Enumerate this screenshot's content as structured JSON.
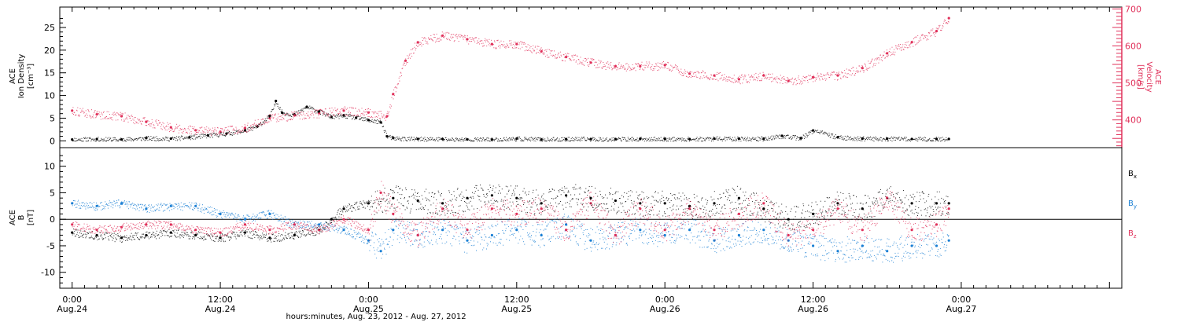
{
  "chart_data": {
    "type": "scatter",
    "xlabel": "hours:minutes, Aug. 23, 2012 - Aug. 27, 2012",
    "x_range_hours": [
      -1,
      85
    ],
    "x_ticks": [
      {
        "h": 0,
        "time": "0:00",
        "date": "Aug.24"
      },
      {
        "h": 12,
        "time": "12:00",
        "date": "Aug.24"
      },
      {
        "h": 24,
        "time": "0:00",
        "date": "Aug.25"
      },
      {
        "h": 36,
        "time": "12:00",
        "date": "Aug.25"
      },
      {
        "h": 48,
        "time": "0:00",
        "date": "Aug.26"
      },
      {
        "h": 60,
        "time": "12:00",
        "date": "Aug.26"
      },
      {
        "h": 72,
        "time": "0:00",
        "date": "Aug.27"
      }
    ],
    "panels": [
      {
        "id": "top",
        "ylabel_lines": [
          "ACE",
          "Ion Density",
          "[cm⁻³]"
        ],
        "ylim": [
          -1.5,
          29.5
        ],
        "yticks": [
          0,
          5,
          10,
          15,
          20,
          25
        ],
        "right_axis": {
          "label_lines": [
            "ACE",
            "Velocity",
            "[km/s]"
          ],
          "ylim": [
            325,
            705
          ],
          "yticks": [
            400,
            500,
            600,
            700
          ],
          "color": "#e0305a"
        },
        "series": [
          {
            "name": "",
            "axis": "left",
            "color": "#000000",
            "points": [
              [
                0,
                0.3
              ],
              [
                2,
                0.4
              ],
              [
                4,
                0.3
              ],
              [
                6,
                0.6
              ],
              [
                8,
                0.5
              ],
              [
                9.5,
                0.8
              ],
              [
                11,
                1.2
              ],
              [
                12.5,
                1.6
              ],
              [
                14,
                2.3
              ],
              [
                15,
                3.2
              ],
              [
                16,
                5.5
              ],
              [
                16.5,
                8.8
              ],
              [
                17,
                6.2
              ],
              [
                18,
                5.8
              ],
              [
                19,
                7.5
              ],
              [
                20,
                6.5
              ],
              [
                21,
                5.3
              ],
              [
                22,
                5.6
              ],
              [
                23,
                5.1
              ],
              [
                24,
                4.6
              ],
              [
                25,
                4.1
              ],
              [
                25.5,
                1.0
              ],
              [
                26,
                0.6
              ],
              [
                28,
                0.4
              ],
              [
                30,
                0.4
              ],
              [
                32,
                0.3
              ],
              [
                34,
                0.3
              ],
              [
                36,
                0.5
              ],
              [
                38,
                0.3
              ],
              [
                40,
                0.4
              ],
              [
                42,
                0.4
              ],
              [
                44,
                0.4
              ],
              [
                46,
                0.4
              ],
              [
                48,
                0.4
              ],
              [
                50,
                0.4
              ],
              [
                52,
                0.5
              ],
              [
                54,
                0.5
              ],
              [
                56,
                0.5
              ],
              [
                57.5,
                1.1
              ],
              [
                59,
                0.6
              ],
              [
                60,
                2.3
              ],
              [
                62,
                0.8
              ],
              [
                64,
                0.5
              ],
              [
                66,
                0.5
              ],
              [
                68,
                0.4
              ],
              [
                70,
                0.4
              ],
              [
                71,
                0.4
              ]
            ]
          },
          {
            "name": "",
            "axis": "right",
            "color": "#e0305a",
            "points": [
              [
                0,
                425
              ],
              [
                2,
                415
              ],
              [
                4,
                410
              ],
              [
                6,
                395
              ],
              [
                8,
                380
              ],
              [
                10,
                372
              ],
              [
                12,
                368
              ],
              [
                14,
                378
              ],
              [
                16,
                405
              ],
              [
                18,
                412
              ],
              [
                20,
                418
              ],
              [
                22,
                425
              ],
              [
                24,
                420
              ],
              [
                25.5,
                410
              ],
              [
                26,
                470
              ],
              [
                27,
                560
              ],
              [
                28,
                610
              ],
              [
                30,
                628
              ],
              [
                32,
                618
              ],
              [
                34,
                605
              ],
              [
                36,
                605
              ],
              [
                38,
                585
              ],
              [
                40,
                570
              ],
              [
                42,
                555
              ],
              [
                44,
                545
              ],
              [
                46,
                545
              ],
              [
                48,
                548
              ],
              [
                50,
                525
              ],
              [
                52,
                520
              ],
              [
                54,
                510
              ],
              [
                56,
                520
              ],
              [
                58,
                505
              ],
              [
                60,
                515
              ],
              [
                62,
                520
              ],
              [
                64,
                540
              ],
              [
                66,
                580
              ],
              [
                68,
                610
              ],
              [
                70,
                640
              ],
              [
                71,
                675
              ]
            ]
          }
        ]
      },
      {
        "id": "bottom",
        "ylabel_lines": [
          "ACE",
          "B",
          "[nT]"
        ],
        "ylim": [
          -13,
          13.5
        ],
        "yticks": [
          -10,
          -5,
          0,
          5,
          10
        ],
        "zero_line": true,
        "legend": [
          {
            "label": "B",
            "sub": "x",
            "color": "#000000"
          },
          {
            "label": "B",
            "sub": "y",
            "color": "#1a7fd4"
          },
          {
            "label": "B",
            "sub": "z",
            "color": "#e0305a"
          }
        ],
        "series": [
          {
            "name": "Bx",
            "color": "#000000",
            "points": [
              [
                0,
                -2.5
              ],
              [
                2,
                -3
              ],
              [
                4,
                -3.5
              ],
              [
                6,
                -3
              ],
              [
                8,
                -2.5
              ],
              [
                10,
                -3
              ],
              [
                12,
                -3.5
              ],
              [
                14,
                -2.5
              ],
              [
                16,
                -3.5
              ],
              [
                18,
                -3
              ],
              [
                20,
                -2
              ],
              [
                21,
                0
              ],
              [
                22,
                2
              ],
              [
                24,
                3
              ],
              [
                26,
                4
              ],
              [
                28,
                3.5
              ],
              [
                30,
                3
              ],
              [
                32,
                4
              ],
              [
                34,
                4.5
              ],
              [
                36,
                4
              ],
              [
                38,
                3
              ],
              [
                40,
                4.5
              ],
              [
                42,
                4
              ],
              [
                44,
                3.5
              ],
              [
                46,
                3
              ],
              [
                48,
                3
              ],
              [
                50,
                2.5
              ],
              [
                52,
                3
              ],
              [
                54,
                4
              ],
              [
                56,
                2
              ],
              [
                58,
                0
              ],
              [
                60,
                1
              ],
              [
                62,
                3
              ],
              [
                64,
                2
              ],
              [
                66,
                4
              ],
              [
                68,
                3
              ],
              [
                70,
                3
              ],
              [
                71,
                3
              ]
            ]
          },
          {
            "name": "By",
            "color": "#1a7fd4",
            "points": [
              [
                0,
                3
              ],
              [
                2,
                2.5
              ],
              [
                4,
                3
              ],
              [
                6,
                2
              ],
              [
                8,
                2.5
              ],
              [
                10,
                2.5
              ],
              [
                12,
                1
              ],
              [
                14,
                0
              ],
              [
                16,
                1
              ],
              [
                18,
                -1
              ],
              [
                20,
                -1
              ],
              [
                22,
                -2
              ],
              [
                24,
                -4
              ],
              [
                25,
                -6
              ],
              [
                26,
                -2
              ],
              [
                28,
                -3
              ],
              [
                30,
                -2
              ],
              [
                32,
                -4
              ],
              [
                34,
                -3
              ],
              [
                36,
                -2
              ],
              [
                38,
                -3
              ],
              [
                40,
                -1
              ],
              [
                42,
                -4
              ],
              [
                44,
                -3
              ],
              [
                46,
                -2
              ],
              [
                48,
                -3
              ],
              [
                50,
                -2
              ],
              [
                52,
                -4
              ],
              [
                54,
                -3
              ],
              [
                56,
                -2
              ],
              [
                58,
                -4
              ],
              [
                60,
                -5
              ],
              [
                62,
                -6
              ],
              [
                64,
                -5
              ],
              [
                66,
                -6
              ],
              [
                68,
                -5
              ],
              [
                70,
                -5
              ],
              [
                71,
                -4
              ]
            ]
          },
          {
            "name": "Bz",
            "color": "#e0305a",
            "points": [
              [
                0,
                -1
              ],
              [
                2,
                -2
              ],
              [
                4,
                -1.5
              ],
              [
                6,
                -1
              ],
              [
                8,
                -1
              ],
              [
                10,
                -2
              ],
              [
                12,
                -2.5
              ],
              [
                14,
                -1
              ],
              [
                16,
                -2
              ],
              [
                18,
                -1
              ],
              [
                20,
                -2
              ],
              [
                22,
                0
              ],
              [
                24,
                -2
              ],
              [
                25,
                5
              ],
              [
                26,
                1
              ],
              [
                28,
                -3
              ],
              [
                30,
                2
              ],
              [
                32,
                -2
              ],
              [
                34,
                2
              ],
              [
                36,
                1
              ],
              [
                38,
                2
              ],
              [
                40,
                -2
              ],
              [
                42,
                3
              ],
              [
                44,
                -3
              ],
              [
                46,
                2
              ],
              [
                48,
                -2
              ],
              [
                50,
                2
              ],
              [
                52,
                -2
              ],
              [
                54,
                1
              ],
              [
                56,
                3
              ],
              [
                58,
                -3
              ],
              [
                60,
                -2
              ],
              [
                62,
                2
              ],
              [
                64,
                -2
              ],
              [
                66,
                4
              ],
              [
                68,
                -2
              ],
              [
                70,
                -1
              ],
              [
                71,
                2
              ]
            ]
          }
        ]
      }
    ]
  }
}
